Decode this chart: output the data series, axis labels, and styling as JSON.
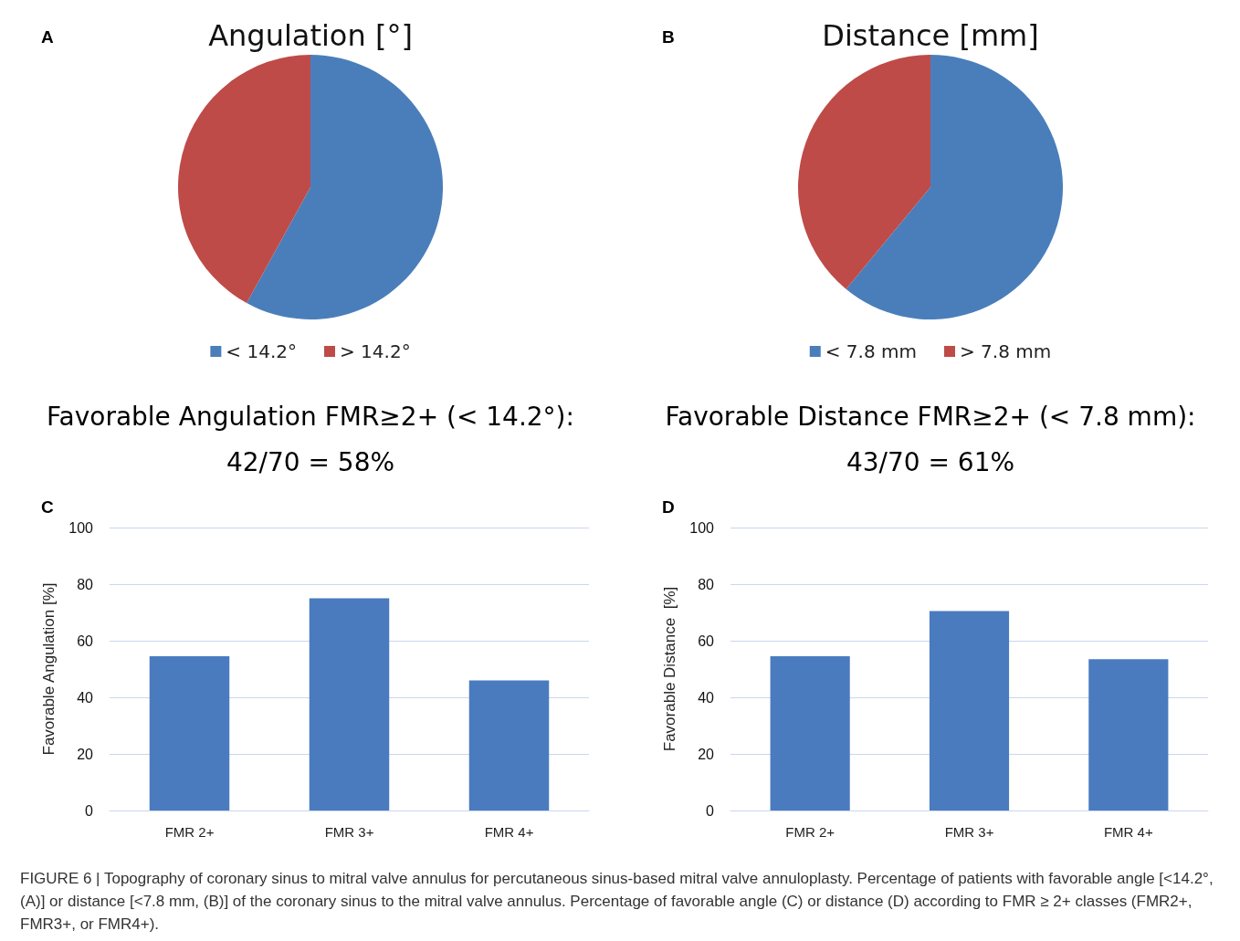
{
  "chart_data": [
    {
      "type": "pie",
      "title": "Angulation [°]",
      "categories": [
        "< 14.2°",
        "> 14.2°"
      ],
      "values": [
        58,
        42
      ],
      "colors": [
        "#4a7ebb",
        "#be4b48"
      ],
      "legend": "bottom",
      "annotations": [
        "A",
        "Favorable Angulation FMR≥2+ (< 14.2°): 42/70 = 58%"
      ]
    },
    {
      "type": "pie",
      "title": "Distance [mm]",
      "categories": [
        "< 7.8 mm",
        "> 7.8 mm"
      ],
      "values": [
        61,
        39
      ],
      "colors": [
        "#4a7ebb",
        "#be4b48"
      ],
      "legend": "bottom",
      "annotations": [
        "B",
        "Favorable Distance FMR≥2+ (< 7.8 mm): 43/70 = 61%"
      ]
    },
    {
      "type": "bar",
      "ylabel": "Favorable Angulation [%]",
      "categories": [
        "FMR 2+",
        "FMR 3+",
        "FMR 4+"
      ],
      "values": [
        54.5,
        75,
        46
      ],
      "color": "#4a7bbf",
      "ylim": [
        0,
        100
      ],
      "yticks": [
        0,
        20,
        40,
        60,
        80,
        100
      ],
      "grid": "y",
      "annotations": [
        "C"
      ]
    },
    {
      "type": "bar",
      "ylabel": "Favorable Distance  [%]",
      "categories": [
        "FMR 2+",
        "FMR 3+",
        "FMR 4+"
      ],
      "values": [
        54.5,
        70.5,
        53.5
      ],
      "color": "#4a7bbf",
      "ylim": [
        0,
        100
      ],
      "yticks": [
        0,
        20,
        40,
        60,
        80,
        100
      ],
      "grid": "y",
      "annotations": [
        "D",
        "FIGURE 6 | Topography of coronary sinus to mitral valve annulus for percutaneous sinus-based mitral valve annuloplasty. Percentage of patients with favorable angle [<14.2°, (A)] or distance [<7.8 mm, (B)] of the coronary sinus to the mitral valve annulus. Percentage of favorable angle (C) or distance (D) according to FMR ≥ 2+ classes (FMR2+, FMR3+, or FMR4+)."
      ]
    }
  ]
}
